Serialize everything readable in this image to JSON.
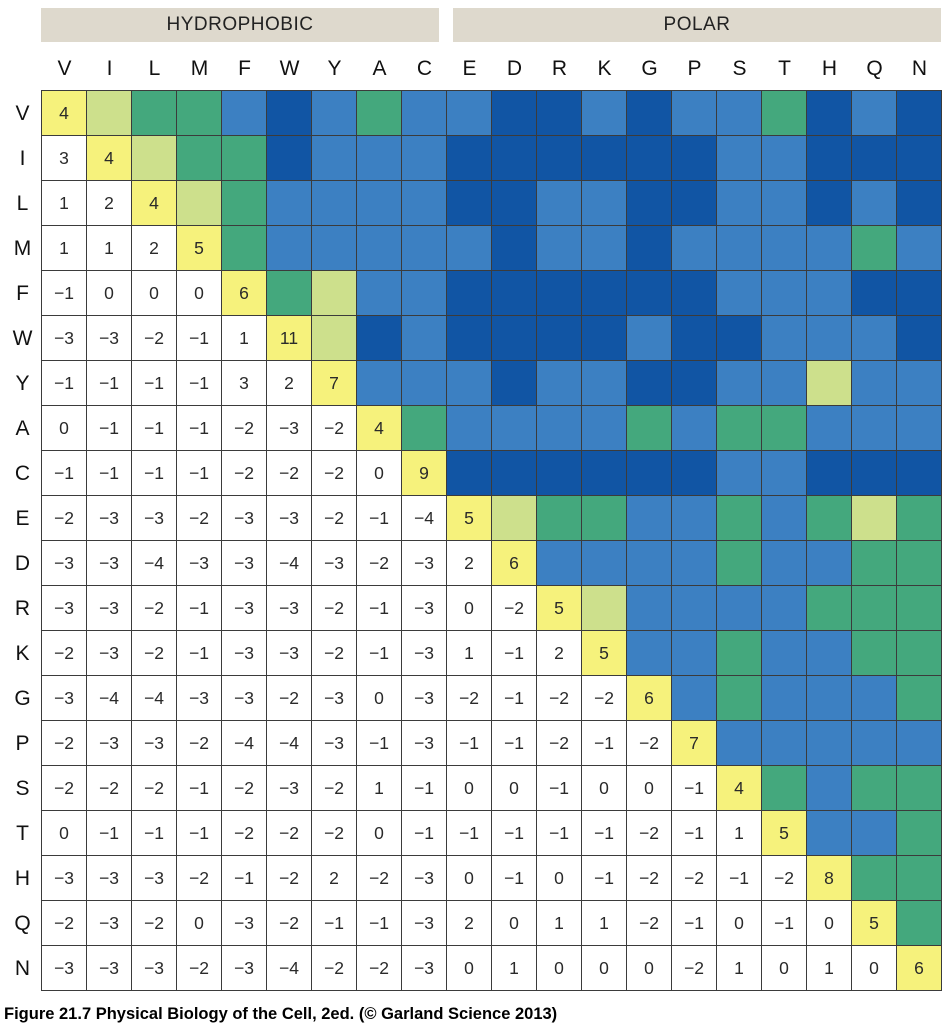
{
  "caption": "Figure 21.7  Physical Biology of the Cell, 2ed. (© Garland Science 2013)",
  "chart_data": {
    "type": "heatmap",
    "categories": [
      "V",
      "I",
      "L",
      "M",
      "F",
      "W",
      "Y",
      "A",
      "C",
      "E",
      "D",
      "R",
      "K",
      "G",
      "P",
      "S",
      "T",
      "H",
      "Q",
      "N"
    ],
    "groups": [
      {
        "label": "HYDROPHOBIC",
        "span": 9
      },
      {
        "label": "POLAR",
        "span": 11
      }
    ],
    "matrix_lower_triangle": [
      [
        4
      ],
      [
        3,
        4
      ],
      [
        1,
        2,
        4
      ],
      [
        1,
        1,
        2,
        5
      ],
      [
        -1,
        0,
        0,
        0,
        6
      ],
      [
        -3,
        -3,
        -2,
        -1,
        1,
        11
      ],
      [
        -1,
        -1,
        -1,
        -1,
        3,
        2,
        7
      ],
      [
        0,
        -1,
        -1,
        -1,
        -2,
        -3,
        -2,
        4
      ],
      [
        -1,
        -1,
        -1,
        -1,
        -2,
        -2,
        -2,
        0,
        9
      ],
      [
        -2,
        -3,
        -3,
        -2,
        -3,
        -3,
        -2,
        -1,
        -4,
        5
      ],
      [
        -3,
        -3,
        -4,
        -3,
        -3,
        -4,
        -3,
        -2,
        -3,
        2,
        6
      ],
      [
        -3,
        -3,
        -2,
        -1,
        -3,
        -3,
        -2,
        -1,
        -3,
        0,
        -2,
        5
      ],
      [
        -2,
        -3,
        -2,
        -1,
        -3,
        -3,
        -2,
        -1,
        -3,
        1,
        -1,
        2,
        5
      ],
      [
        -3,
        -4,
        -4,
        -3,
        -3,
        -2,
        -3,
        0,
        -3,
        -2,
        -1,
        -2,
        -2,
        6
      ],
      [
        -2,
        -3,
        -3,
        -2,
        -4,
        -4,
        -3,
        -1,
        -3,
        -1,
        -1,
        -2,
        -1,
        -2,
        7
      ],
      [
        -2,
        -2,
        -2,
        -1,
        -2,
        -3,
        -2,
        1,
        -1,
        0,
        0,
        -1,
        0,
        0,
        -1,
        4
      ],
      [
        0,
        -1,
        -1,
        -1,
        -2,
        -2,
        -2,
        0,
        -1,
        -1,
        -1,
        -1,
        -1,
        -2,
        -1,
        1,
        5
      ],
      [
        -3,
        -3,
        -3,
        -2,
        -1,
        -2,
        2,
        -2,
        -3,
        0,
        -1,
        0,
        -1,
        -2,
        -2,
        -1,
        -2,
        8
      ],
      [
        -2,
        -3,
        -2,
        0,
        -3,
        -2,
        -1,
        -1,
        -3,
        2,
        0,
        1,
        1,
        -2,
        -1,
        0,
        -1,
        0,
        5
      ],
      [
        -3,
        -3,
        -3,
        -2,
        -3,
        -4,
        -2,
        -2,
        -3,
        0,
        1,
        0,
        0,
        0,
        -2,
        1,
        0,
        1,
        0,
        6
      ]
    ],
    "lower_triangle_display": "numeric values on white",
    "upper_triangle_display": "color-coded values, no numbers",
    "diagonal_display": "numeric values on yellow"
  },
  "colors": {
    "group_header_bg": "#ded9cd",
    "diagonal_yellow": "#f6f27c",
    "score_2_to_3": "#cde08c",
    "score_0_to_1": "#44a87d",
    "score_-1_to_-2": "#3c80c2",
    "score_-3_to_-4": "#1155a4",
    "grid_line": "#3b3b3b",
    "lower_cell_bg": "#ffffff"
  }
}
